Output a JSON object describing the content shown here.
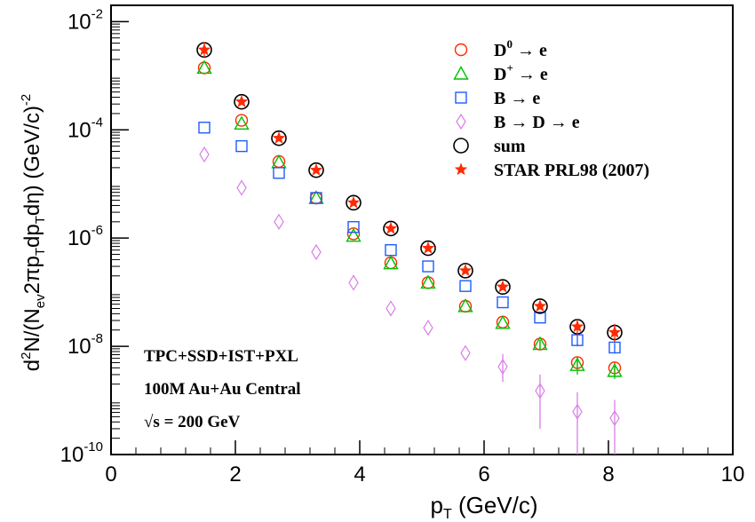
{
  "chart_data": {
    "type": "scatter",
    "title": "",
    "xlabel": {
      "main": "p",
      "sub": "T",
      "rest": " (GeV/c)"
    },
    "ylabel": {
      "parts": [
        "d",
        "2",
        "N/(N",
        "ev",
        "2πp",
        "T",
        "dp",
        "T",
        "dη) (GeV/c)",
        "-2"
      ]
    },
    "xlim": [
      0,
      10
    ],
    "ylim": [
      1e-10,
      0.02
    ],
    "yscale": "log",
    "grid": false,
    "legend_position": "top-right",
    "x_ticks": [
      0,
      2,
      4,
      6,
      8,
      10
    ],
    "x_tick_labels": [
      "0",
      "2",
      "4",
      "6",
      "8",
      "10"
    ],
    "y_ticks": [
      {
        "value": 0.01,
        "base": "10",
        "exp": "-2"
      },
      {
        "value": 0.0001,
        "base": "10",
        "exp": "-4"
      },
      {
        "value": 1e-06,
        "base": "10",
        "exp": "-6"
      },
      {
        "value": 1e-08,
        "base": "10",
        "exp": "-8"
      },
      {
        "value": 1e-10,
        "base": "10",
        "exp": "-10"
      }
    ],
    "annotations": [
      "TPC+SSD+IST+PXL",
      "100M Au+Au Central",
      "√s = 200 GeV"
    ],
    "series": [
      {
        "name": "D0 → e",
        "legend": {
          "main": "D",
          "sup": "0",
          "rest": " → e"
        },
        "marker": "circle",
        "color": "#ff2a00",
        "x": [
          1.5,
          2.1,
          2.7,
          3.3,
          3.9,
          4.5,
          5.1,
          5.7,
          6.3,
          6.9,
          7.5,
          8.1
        ],
        "y": [
          0.0014,
          0.00015,
          2.6e-05,
          5.5e-06,
          1.2e-06,
          3.5e-07,
          1.5e-07,
          5.5e-08,
          2.8e-08,
          1.1e-08,
          5e-09,
          4e-09
        ],
        "err_lo": [
          0,
          0,
          0,
          0,
          0,
          0,
          0,
          0,
          0,
          2e-09,
          1.5e-09,
          1.2e-09
        ],
        "err_hi": [
          0,
          0,
          0,
          0,
          0,
          0,
          0,
          0,
          0,
          2e-09,
          1.5e-09,
          1.2e-09
        ]
      },
      {
        "name": "D+ → e",
        "legend": {
          "main": "D",
          "sup": "+",
          "rest": " → e"
        },
        "marker": "triangle",
        "color": "#00c000",
        "x": [
          1.5,
          2.1,
          2.7,
          3.3,
          3.9,
          4.5,
          5.1,
          5.7,
          6.3,
          6.9,
          7.5,
          8.1
        ],
        "y": [
          0.0014,
          0.00013,
          2.5e-05,
          5.5e-06,
          1.1e-06,
          3.4e-07,
          1.5e-07,
          5.5e-08,
          2.7e-08,
          1.1e-08,
          4.5e-09,
          3.5e-09
        ],
        "err_lo": [
          0,
          0,
          0,
          0,
          0,
          0,
          0,
          0,
          0,
          2e-09,
          1.5e-09,
          1e-09
        ],
        "err_hi": [
          0,
          0,
          0,
          0,
          0,
          0,
          0,
          0,
          0,
          2e-09,
          1.5e-09,
          1e-09
        ]
      },
      {
        "name": "B → e",
        "legend": {
          "main": "B",
          "sup": "",
          "rest": " → e"
        },
        "marker": "square",
        "color": "#1e5cff",
        "x": [
          1.5,
          2.1,
          2.7,
          3.3,
          3.9,
          4.5,
          5.1,
          5.7,
          6.3,
          6.9,
          7.5,
          8.1
        ],
        "y": [
          0.00011,
          5e-05,
          1.6e-05,
          5.5e-06,
          1.6e-06,
          6e-07,
          3e-07,
          1.3e-07,
          6.5e-08,
          3.4e-08,
          1.3e-08,
          9.5e-09
        ],
        "err_lo": [
          0,
          0,
          0,
          0,
          0,
          0,
          0,
          0,
          0,
          0,
          3e-09,
          2e-09
        ],
        "err_hi": [
          0,
          0,
          0,
          0,
          0,
          0,
          0,
          0,
          0,
          0,
          3e-09,
          2e-09
        ]
      },
      {
        "name": "B → D → e",
        "legend": {
          "main": "B",
          "sup": "",
          "rest": " → D → e"
        },
        "marker": "diamond",
        "color": "#d97ee8",
        "x": [
          1.5,
          2.1,
          2.7,
          3.3,
          3.9,
          4.5,
          5.1,
          5.7,
          6.3,
          6.9,
          7.5,
          8.1
        ],
        "y": [
          3.5e-05,
          8.5e-06,
          2e-06,
          5.5e-07,
          1.5e-07,
          5e-08,
          2.2e-08,
          7.5e-09,
          4.2e-09,
          1.5e-09,
          6.2e-10,
          4.7e-10
        ],
        "err_lo": [
          0,
          0,
          0,
          0,
          0,
          0,
          0,
          0,
          2e-09,
          1.2e-09,
          5.8e-10,
          4.5e-10
        ],
        "err_hi": [
          0,
          0,
          0,
          0,
          0,
          0,
          0,
          0,
          3e-09,
          1.5e-09,
          8e-10,
          5.5e-10
        ]
      },
      {
        "name": "sum",
        "legend": {
          "main": "sum",
          "sup": "",
          "rest": ""
        },
        "marker": "circle-big",
        "color": "#000000",
        "x": [
          1.5,
          2.1,
          2.7,
          3.3,
          3.9,
          4.5,
          5.1,
          5.7,
          6.3,
          6.9,
          7.5,
          8.1
        ],
        "y": [
          0.003,
          0.00033,
          7e-05,
          1.8e-05,
          4.5e-06,
          1.5e-06,
          6.5e-07,
          2.5e-07,
          1.25e-07,
          5.5e-08,
          2.3e-08,
          1.8e-08
        ],
        "err_lo": [
          0,
          0,
          0,
          0,
          0,
          0,
          0,
          0,
          0,
          0,
          0,
          0
        ],
        "err_hi": [
          0,
          0,
          0,
          0,
          0,
          0,
          0,
          0,
          0,
          0,
          0,
          0
        ]
      },
      {
        "name": "STAR PRL98 (2007)",
        "legend": {
          "main": "STAR PRL98 (2007)",
          "sup": "",
          "rest": ""
        },
        "marker": "star",
        "color": "#ff2a00",
        "x": [
          1.5,
          2.1,
          2.7,
          3.3,
          3.9,
          4.5,
          5.1,
          5.7,
          6.3,
          6.9,
          7.5,
          8.1
        ],
        "y": [
          0.003,
          0.00033,
          7e-05,
          1.8e-05,
          4.5e-06,
          1.5e-06,
          6.5e-07,
          2.5e-07,
          1.25e-07,
          5.5e-08,
          2.3e-08,
          1.8e-08
        ],
        "err_lo": [
          0.0008,
          0,
          0,
          0,
          0,
          0,
          0,
          0,
          0,
          0,
          7e-09,
          6e-09
        ],
        "err_hi": [
          0.0012,
          0,
          0,
          0,
          0,
          0,
          0,
          0,
          0,
          0,
          9e-09,
          8e-09
        ]
      }
    ]
  }
}
